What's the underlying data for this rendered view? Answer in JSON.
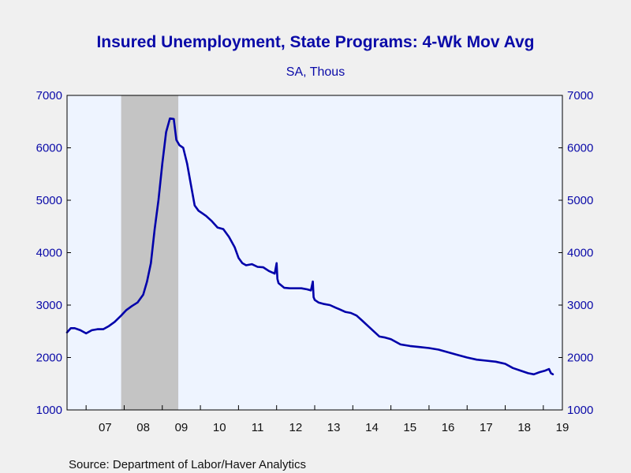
{
  "colors": {
    "page_background": "#f0f0f0",
    "plot_background": "#eef4ff",
    "recession_shade": "#c4c4c4",
    "line": "#0000aa",
    "text_blue": "#0a0aa8",
    "axis": "#000000"
  },
  "chart_data": {
    "type": "line",
    "title": "Insured Unemployment, State Programs: 4-Wk Mov Avg",
    "subtitle": "SA, Thous",
    "source": "Source:  Department of Labor/Haver Analytics",
    "xlabel": "",
    "ylabel": "",
    "xlim": [
      2006.5,
      2019.5
    ],
    "ylim": [
      1000,
      7000
    ],
    "y_ticks": [
      1000,
      2000,
      3000,
      4000,
      5000,
      6000,
      7000
    ],
    "y_tick_labels": [
      "1000",
      "2000",
      "3000",
      "4000",
      "5000",
      "6000",
      "7000"
    ],
    "x_tick_labels": [
      "07",
      "08",
      "09",
      "10",
      "11",
      "12",
      "13",
      "14",
      "15",
      "16",
      "17",
      "18",
      "19"
    ],
    "x_tick_centers": [
      2007.5,
      2008.5,
      2009.5,
      2010.5,
      2011.5,
      2012.5,
      2013.5,
      2014.5,
      2015.5,
      2016.5,
      2017.5,
      2018.5,
      2019.5
    ],
    "grid": false,
    "right_axis": true,
    "recession": {
      "start": 2007.92,
      "end": 2009.42
    },
    "series": [
      {
        "color": "#0000aa",
        "x": [
          2006.5,
          2006.6,
          2006.7,
          2006.85,
          2007.0,
          2007.15,
          2007.3,
          2007.45,
          2007.6,
          2007.75,
          2007.92,
          2008.05,
          2008.2,
          2008.35,
          2008.5,
          2008.6,
          2008.7,
          2008.8,
          2008.9,
          2009.0,
          2009.1,
          2009.2,
          2009.3,
          2009.37,
          2009.45,
          2009.55,
          2009.65,
          2009.75,
          2009.85,
          2009.95,
          2010.05,
          2010.15,
          2010.3,
          2010.45,
          2010.6,
          2010.75,
          2010.9,
          2011.0,
          2011.1,
          2011.2,
          2011.35,
          2011.5,
          2011.65,
          2011.8,
          2011.95,
          2012.0,
          2012.02,
          2012.05,
          2012.2,
          2012.35,
          2012.5,
          2012.65,
          2012.8,
          2012.9,
          2012.95,
          2012.97,
          2013.0,
          2013.1,
          2013.25,
          2013.4,
          2013.55,
          2013.65,
          2013.8,
          2013.95,
          2014.1,
          2014.25,
          2014.4,
          2014.55,
          2014.7,
          2014.85,
          2015.0,
          2015.25,
          2015.5,
          2015.75,
          2016.0,
          2016.25,
          2016.5,
          2016.75,
          2017.0,
          2017.25,
          2017.5,
          2017.75,
          2018.0,
          2018.2,
          2018.4,
          2018.6,
          2018.75,
          2018.9,
          2019.05,
          2019.15,
          2019.2,
          2019.25
        ],
        "values": [
          2480,
          2560,
          2560,
          2520,
          2460,
          2520,
          2540,
          2540,
          2600,
          2680,
          2800,
          2900,
          2980,
          3050,
          3200,
          3450,
          3800,
          4450,
          5000,
          5700,
          6300,
          6560,
          6550,
          6150,
          6050,
          6000,
          5700,
          5300,
          4900,
          4800,
          4750,
          4700,
          4600,
          4480,
          4450,
          4300,
          4100,
          3900,
          3800,
          3760,
          3780,
          3730,
          3720,
          3650,
          3600,
          3800,
          3500,
          3420,
          3330,
          3320,
          3320,
          3320,
          3300,
          3280,
          3450,
          3150,
          3100,
          3050,
          3020,
          3000,
          2950,
          2920,
          2870,
          2850,
          2800,
          2700,
          2600,
          2500,
          2400,
          2380,
          2350,
          2250,
          2220,
          2200,
          2180,
          2150,
          2100,
          2050,
          2000,
          1960,
          1940,
          1920,
          1880,
          1800,
          1750,
          1700,
          1680,
          1720,
          1750,
          1780,
          1700,
          1680
        ]
      }
    ]
  }
}
